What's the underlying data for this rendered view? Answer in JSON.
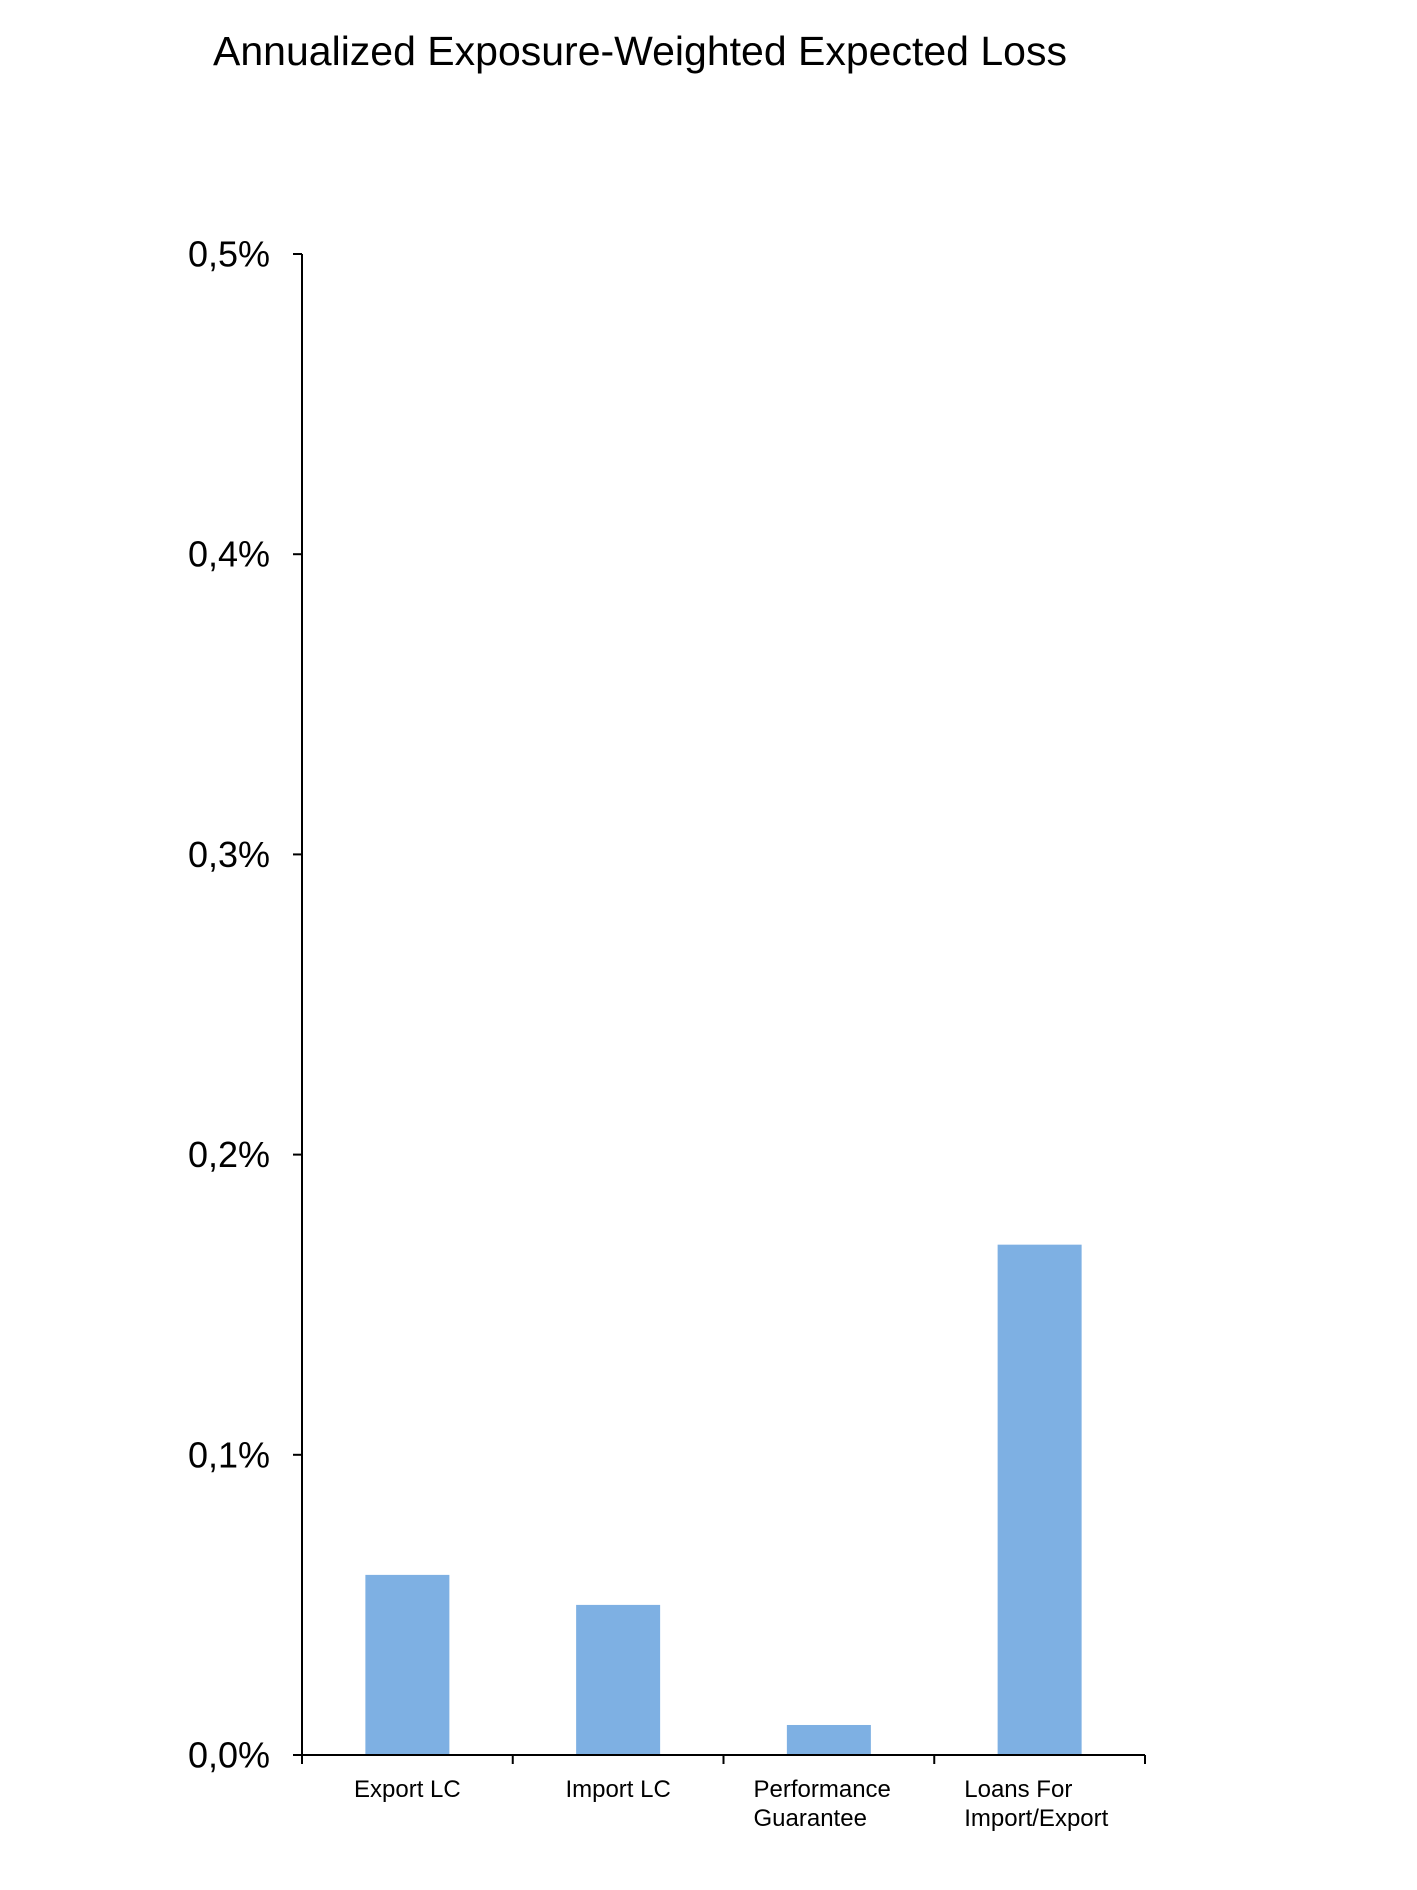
{
  "chart_data": {
    "type": "bar",
    "title": "Annualized Exposure-Weighted Expected Loss",
    "xlabel": "",
    "ylabel": "",
    "categories": [
      [
        "Export LC"
      ],
      [
        "Import LC"
      ],
      [
        "Performance",
        "Guarantee"
      ],
      [
        "Loans For",
        "Import/Export"
      ]
    ],
    "values": [
      0.06,
      0.05,
      0.01,
      0.17
    ],
    "ylim": [
      0,
      0.5
    ],
    "yticks": [
      0.0,
      0.1,
      0.2,
      0.3,
      0.4,
      0.5
    ],
    "ytick_labels": [
      "0,0%",
      "0,1%",
      "0,2%",
      "0,3%",
      "0,4%",
      "0,5%"
    ],
    "grid": false,
    "legend": "none",
    "bar_color": "#7EB0E3",
    "axis_color": "#000000"
  }
}
